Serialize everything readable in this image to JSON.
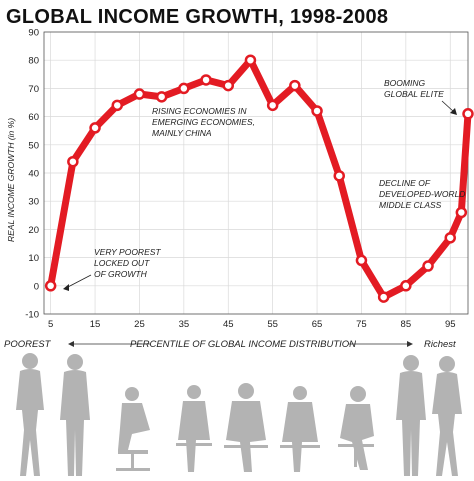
{
  "chart_data": {
    "type": "line",
    "title": "GLOBAL INCOME GROWTH, 1998-2008",
    "ylabel": "REAL INCOME GROWTH (in %)",
    "xlabel": "PERCENTILE OF GLOBAL INCOME DISTRIBUTION",
    "x_left_label": "POOREST",
    "x_right_label": "Richest",
    "x_ticks": [
      5,
      15,
      25,
      35,
      45,
      55,
      65,
      75,
      85,
      95
    ],
    "y_ticks": [
      -10,
      0,
      10,
      20,
      30,
      40,
      50,
      60,
      70,
      80,
      90
    ],
    "xlim": [
      3.5,
      99
    ],
    "ylim": [
      -10,
      90
    ],
    "grid": true,
    "x": [
      5,
      10,
      15,
      20,
      25,
      30,
      35,
      40,
      45,
      50,
      55,
      60,
      65,
      70,
      75,
      80,
      85,
      90,
      95,
      97.5,
      99
    ],
    "values": [
      0,
      44,
      56,
      64,
      68,
      67,
      70,
      73,
      71,
      80,
      64,
      71,
      62,
      39,
      9,
      -4,
      0,
      7,
      17,
      26,
      61
    ],
    "color": "#e31b23",
    "annotations": [
      {
        "lines": [
          "VERY POOREST",
          "LOCKED OUT",
          "OF GROWTH"
        ]
      },
      {
        "lines": [
          "RISING ECONOMIES IN",
          "EMERGING ECONOMIES,",
          "MAINLY CHINA"
        ]
      },
      {
        "lines": [
          "DECLINE OF",
          "DEVELOPED-WORLD",
          "MIDDLE CLASS"
        ]
      },
      {
        "lines": [
          "BOOMING",
          "GLOBAL ELITE"
        ]
      }
    ]
  }
}
